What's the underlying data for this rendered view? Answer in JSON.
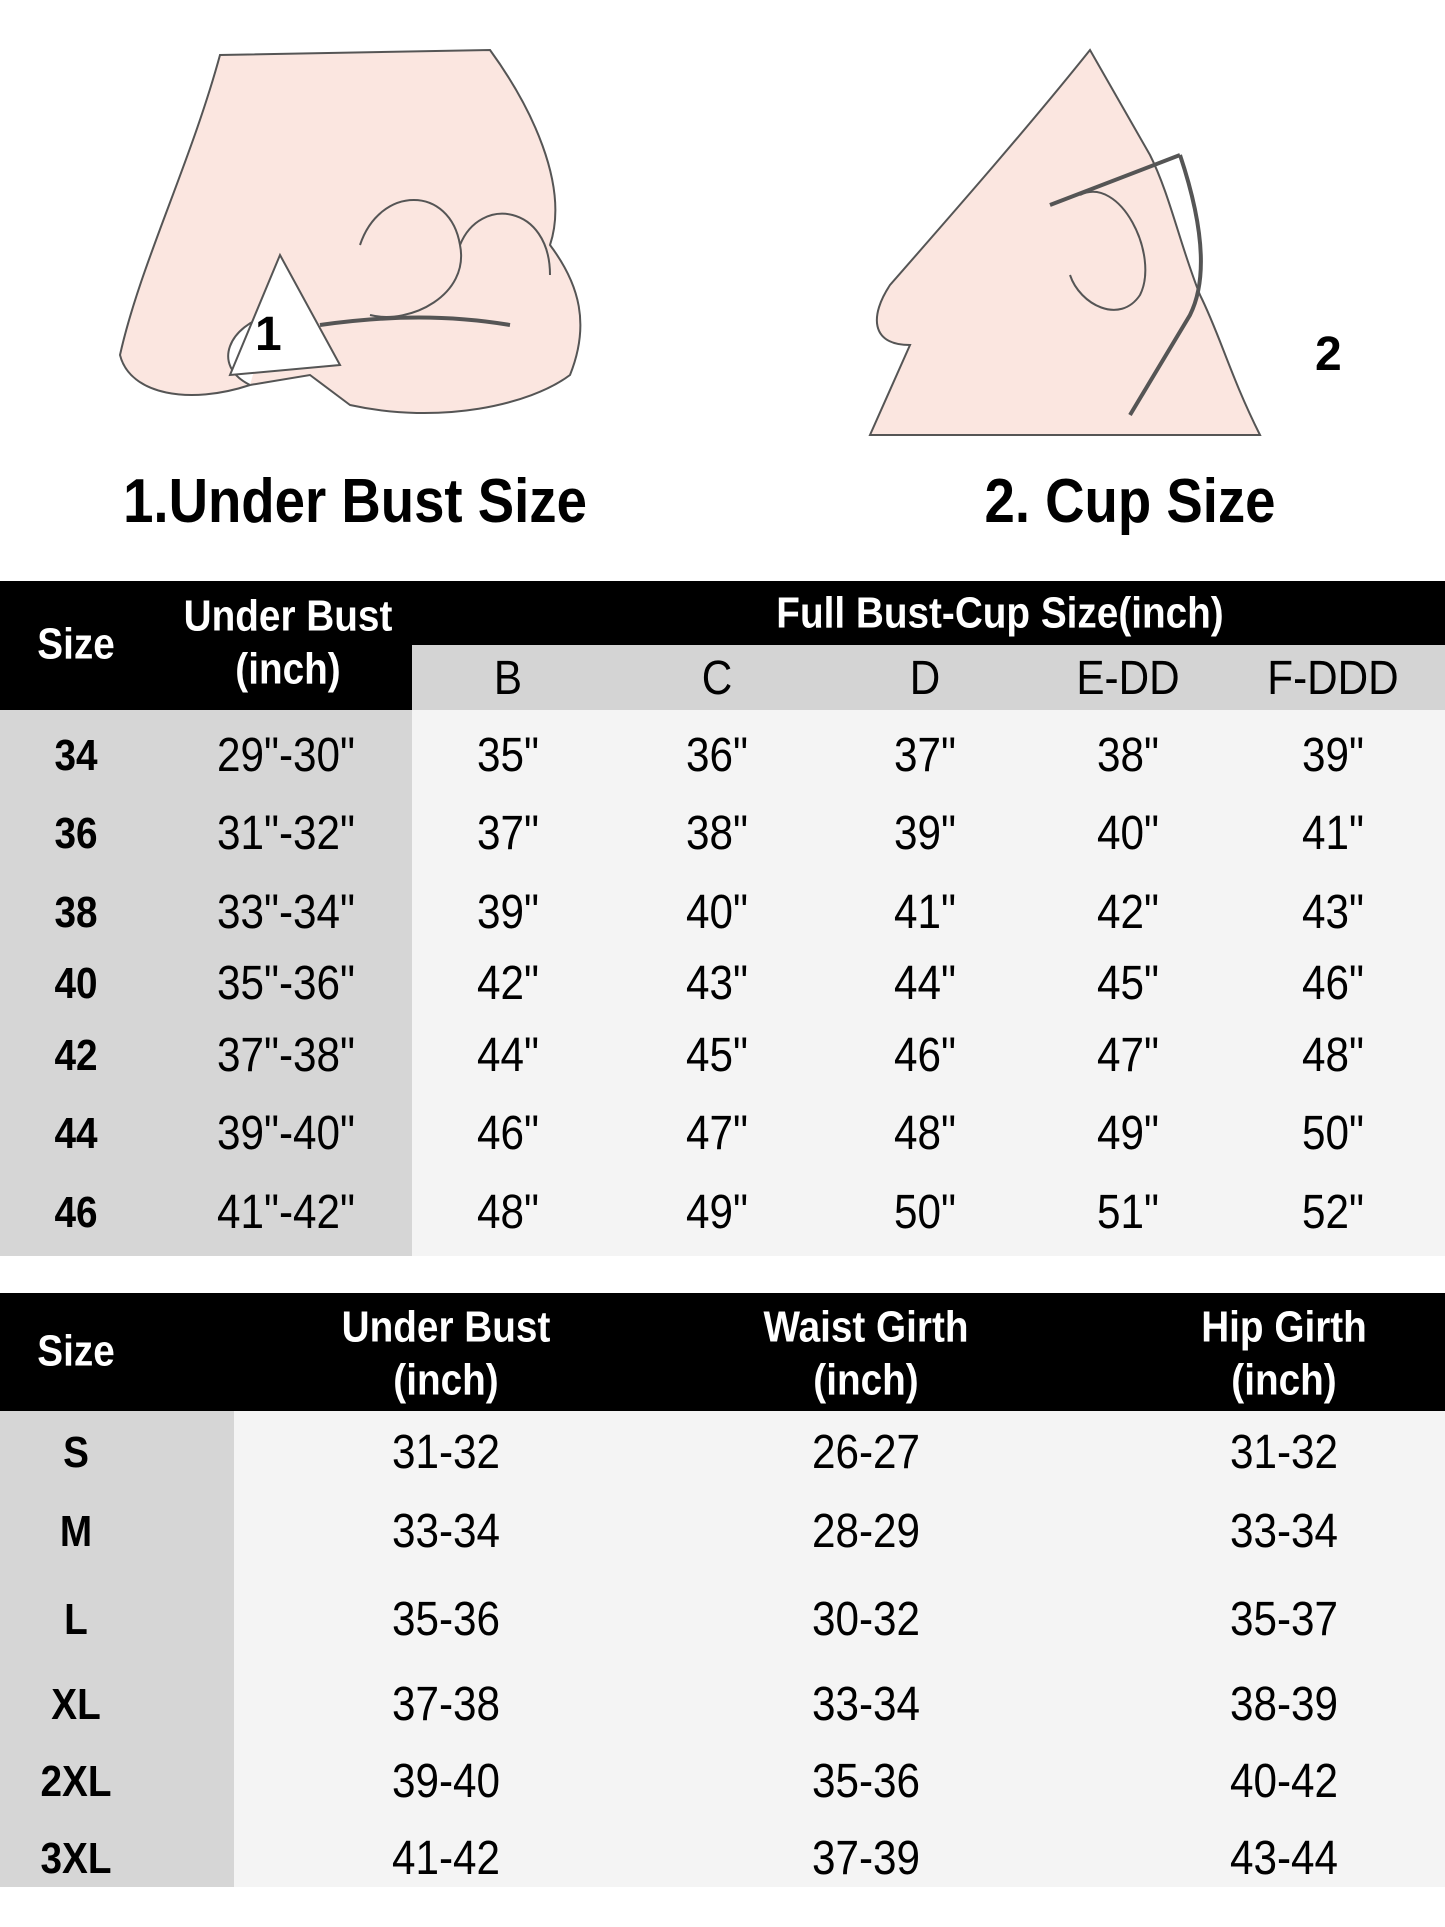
{
  "illustrations": {
    "under_bust": {
      "marker": "1",
      "title": "1.Under Bust Size"
    },
    "cup": {
      "marker": "2",
      "title": "2. Cup Size"
    }
  },
  "colors": {
    "header_bg": "#000000",
    "subheader_bg": "#d4d4d4",
    "size_col_bg": "#d6d6d6",
    "body_bg": "#f4f4f4",
    "skin": "#fbe6e0"
  },
  "bra_table": {
    "headers": {
      "size": "Size",
      "under_bust": "Under Bust",
      "under_bust_unit": "(inch)",
      "full_bust": "Full Bust-Cup Size(inch)"
    },
    "cups": [
      "B",
      "C",
      "D",
      "E-DD",
      "F-DDD"
    ],
    "rows": [
      {
        "size": "34",
        "under_bust": "29\"-30\"",
        "values": [
          "35\"",
          "36\"",
          "37\"",
          "38\"",
          "39\""
        ]
      },
      {
        "size": "36",
        "under_bust": "31\"-32\"",
        "values": [
          "37\"",
          "38\"",
          "39\"",
          "40\"",
          "41\""
        ]
      },
      {
        "size": "38",
        "under_bust": "33\"-34\"",
        "values": [
          "39\"",
          "40\"",
          "41\"",
          "42\"",
          "43\""
        ]
      },
      {
        "size": "40",
        "under_bust": "35\"-36\"",
        "values": [
          "42\"",
          "43\"",
          "44\"",
          "45\"",
          "46\""
        ]
      },
      {
        "size": "42",
        "under_bust": "37\"-38\"",
        "values": [
          "44\"",
          "45\"",
          "46\"",
          "47\"",
          "48\""
        ]
      },
      {
        "size": "44",
        "under_bust": "39\"-40\"",
        "values": [
          "46\"",
          "47\"",
          "48\"",
          "49\"",
          "50\""
        ]
      },
      {
        "size": "46",
        "under_bust": "41\"-42\"",
        "values": [
          "48\"",
          "49\"",
          "50\"",
          "51\"",
          "52\""
        ]
      }
    ]
  },
  "body_table": {
    "headers": [
      {
        "label": "Size",
        "unit": ""
      },
      {
        "label": "Under Bust",
        "unit": "(inch)"
      },
      {
        "label": "Waist Girth",
        "unit": "(inch)"
      },
      {
        "label": "Hip Girth",
        "unit": "(inch)"
      }
    ],
    "rows": [
      {
        "size": "S",
        "values": [
          "31-32",
          "26-27",
          "31-32"
        ]
      },
      {
        "size": "M",
        "values": [
          "33-34",
          "28-29",
          "33-34"
        ]
      },
      {
        "size": "L",
        "values": [
          "35-36",
          "30-32",
          "35-37"
        ]
      },
      {
        "size": "XL",
        "values": [
          "37-38",
          "33-34",
          "38-39"
        ]
      },
      {
        "size": "2XL",
        "values": [
          "39-40",
          "35-36",
          "40-42"
        ]
      },
      {
        "size": "3XL",
        "values": [
          "41-42",
          "37-39",
          "43-44"
        ]
      }
    ]
  }
}
